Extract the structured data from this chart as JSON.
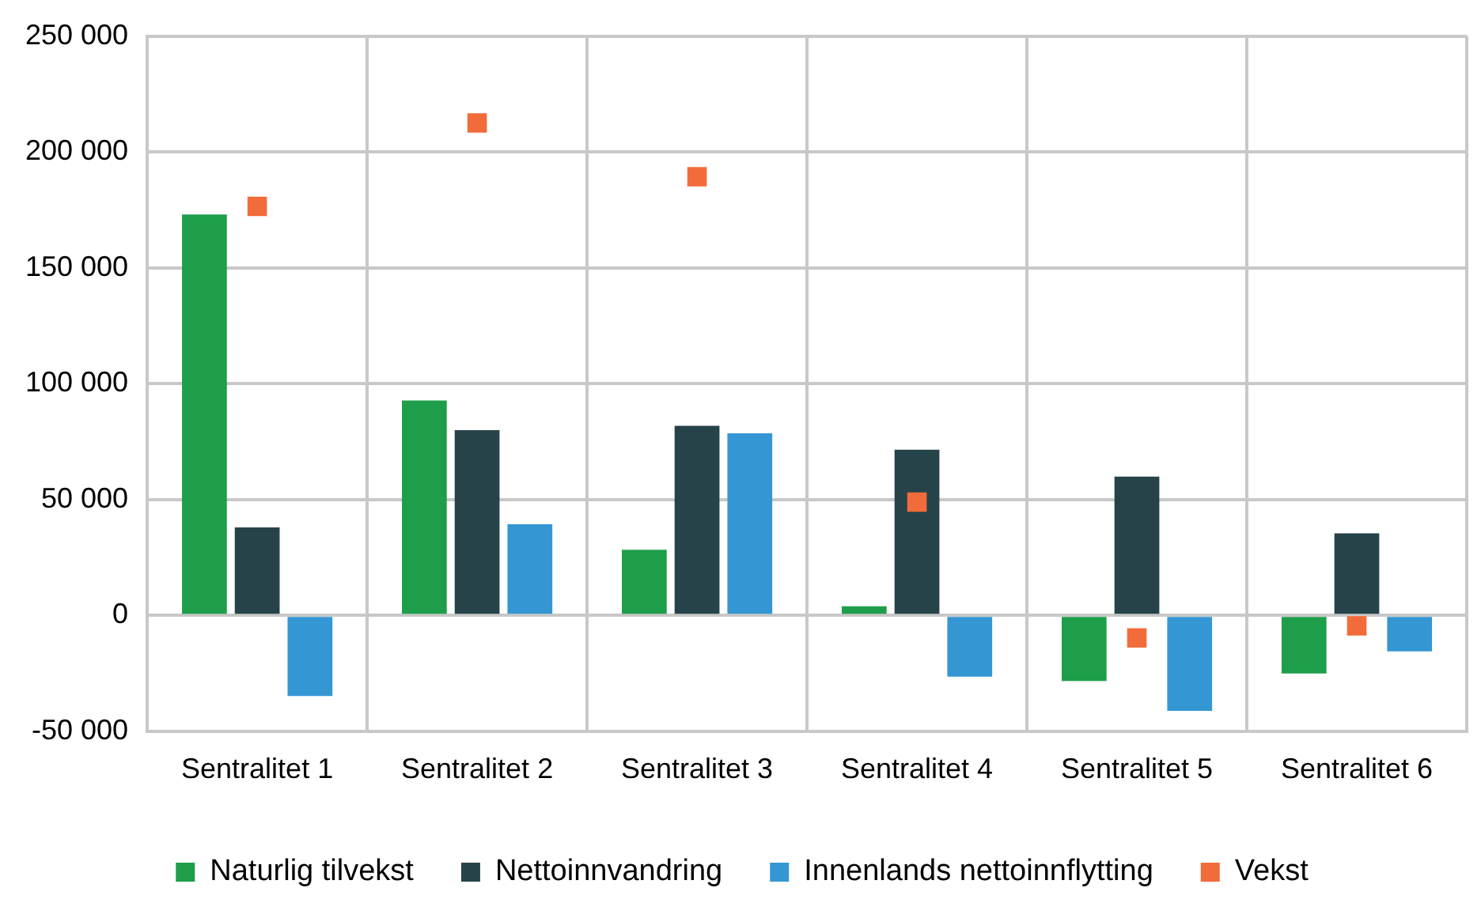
{
  "chart_data": {
    "type": "bar",
    "categories": [
      "Sentralitet 1",
      "Sentralitet 2",
      "Sentralitet 3",
      "Sentralitet 4",
      "Sentralitet 5",
      "Sentralitet 6"
    ],
    "series": [
      {
        "name": "Naturlig tilvekst",
        "color": "#1e9e4a",
        "values": [
          173000,
          92700,
          28300,
          3900,
          -28300,
          -25100
        ]
      },
      {
        "name": "Nettoinnvandring",
        "color": "#27434a",
        "values": [
          38000,
          79900,
          81800,
          71500,
          59900,
          35400
        ]
      },
      {
        "name": "Innenlands nettoinnflytting",
        "color": "#3596d4",
        "values": [
          -34800,
          39300,
          78600,
          -26400,
          -41200,
          -15500
        ]
      },
      {
        "name": "Vekst",
        "type": "scatter",
        "marker": "square",
        "color": "#f26b3a",
        "values": [
          176500,
          212500,
          189300,
          48900,
          -9700,
          -4500
        ]
      }
    ],
    "ylim": [
      -50000,
      250000
    ],
    "yticks": [
      {
        "value": -50000,
        "label": "-50 000"
      },
      {
        "value": 0,
        "label": "0"
      },
      {
        "value": 50000,
        "label": "50 000"
      },
      {
        "value": 100000,
        "label": "100 000"
      },
      {
        "value": 150000,
        "label": "150 000"
      },
      {
        "value": 200000,
        "label": "200 000"
      },
      {
        "value": 250000,
        "label": "250 000"
      }
    ],
    "grid": true,
    "legend": "bottom"
  }
}
